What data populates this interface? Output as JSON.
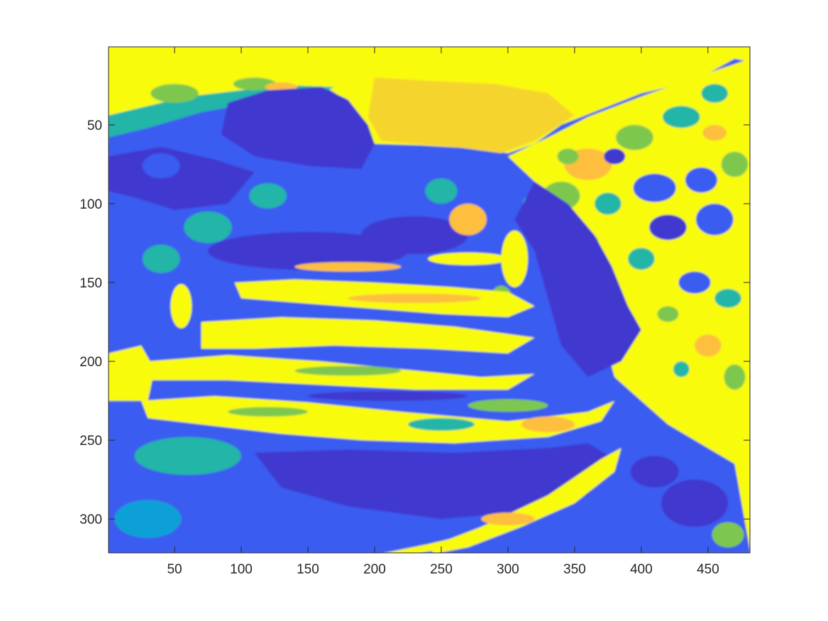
{
  "chart_data": {
    "type": "heatmap",
    "title": "",
    "xlabel": "",
    "ylabel": "",
    "xlim": [
      0.5,
      481.5
    ],
    "ylim": [
      0.5,
      321.5
    ],
    "y_direction": "reversed",
    "grid": false,
    "legend": "none",
    "colormap": "parula",
    "x_ticks": [
      50,
      100,
      150,
      200,
      250,
      300,
      350,
      400,
      450
    ],
    "y_ticks": [
      50,
      100,
      150,
      200,
      250,
      300
    ],
    "palette": {
      "yellow": "#f9fb0e",
      "gold": "#f6d42f",
      "orange": "#fdbf3d",
      "green": "#7ec74f",
      "teal": "#22b5a8",
      "cyan": "#0ba0d6",
      "blue": "#3b5cf0",
      "deep_blue": "#3f39cf"
    }
  }
}
